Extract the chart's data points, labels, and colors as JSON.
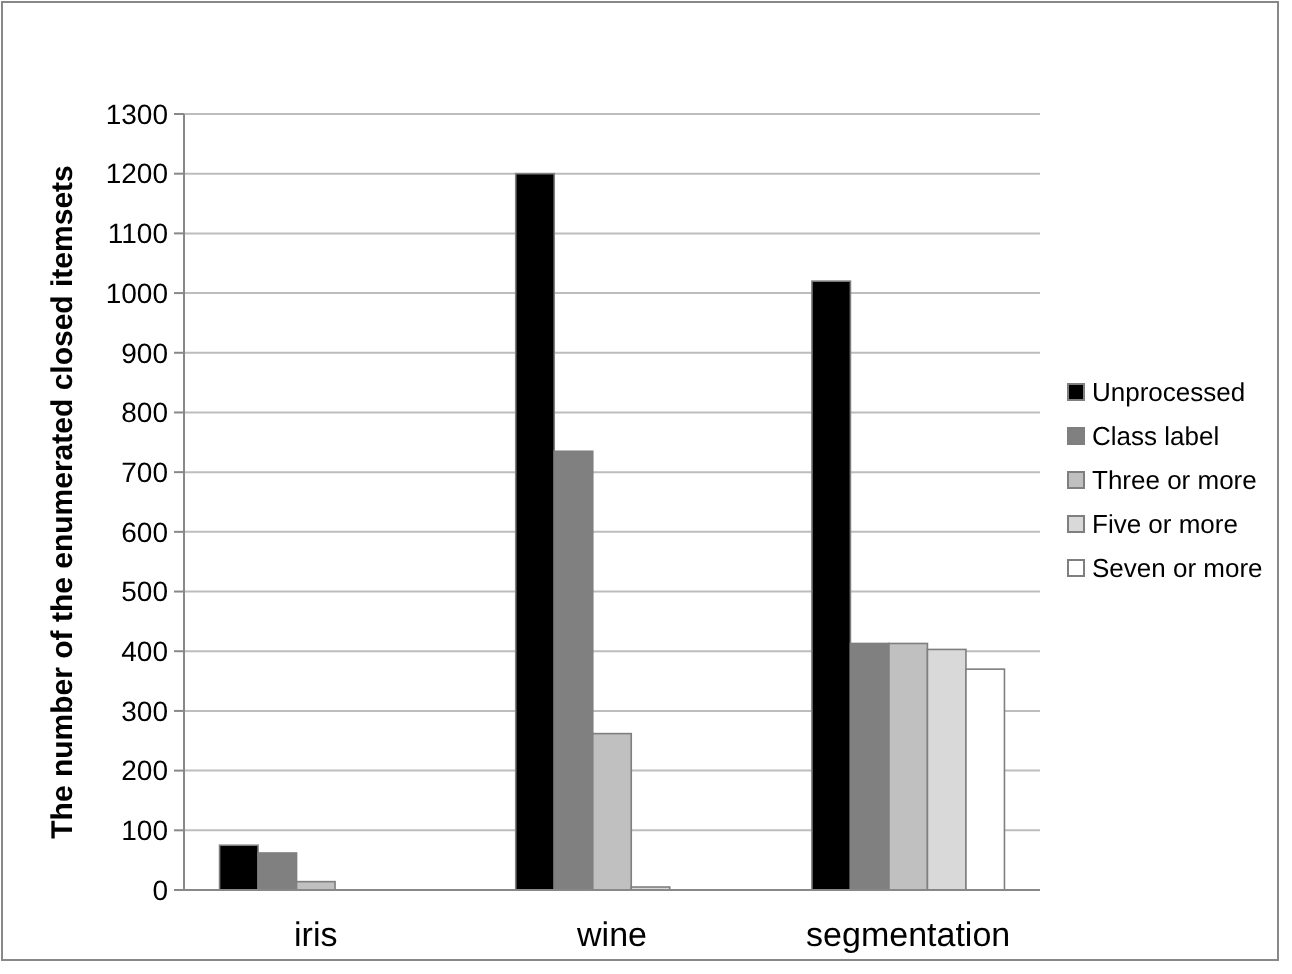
{
  "chart_data": {
    "type": "bar",
    "ylabel": "The number of the enumerated closed itemsets",
    "categories": [
      "iris",
      "wine",
      "segmentation"
    ],
    "series": [
      {
        "name": "Unprocessed",
        "color": "#000000",
        "values": [
          75,
          1200,
          1020
        ]
      },
      {
        "name": "Class label",
        "color": "#808080",
        "values": [
          62,
          735,
          413
        ]
      },
      {
        "name": "Three or more",
        "color": "#c0c0c0",
        "values": [
          14,
          262,
          413
        ]
      },
      {
        "name": "Five or more",
        "color": "#d9d9d9",
        "values": [
          0,
          5,
          403
        ]
      },
      {
        "name": "Seven or more",
        "color": "#ffffff",
        "values": [
          0,
          0,
          370
        ]
      }
    ],
    "ylim": [
      0,
      1300
    ],
    "yticks": [
      0,
      100,
      200,
      300,
      400,
      500,
      600,
      700,
      800,
      900,
      1000,
      1100,
      1200,
      1300
    ],
    "grid": "y",
    "legend": "right"
  }
}
